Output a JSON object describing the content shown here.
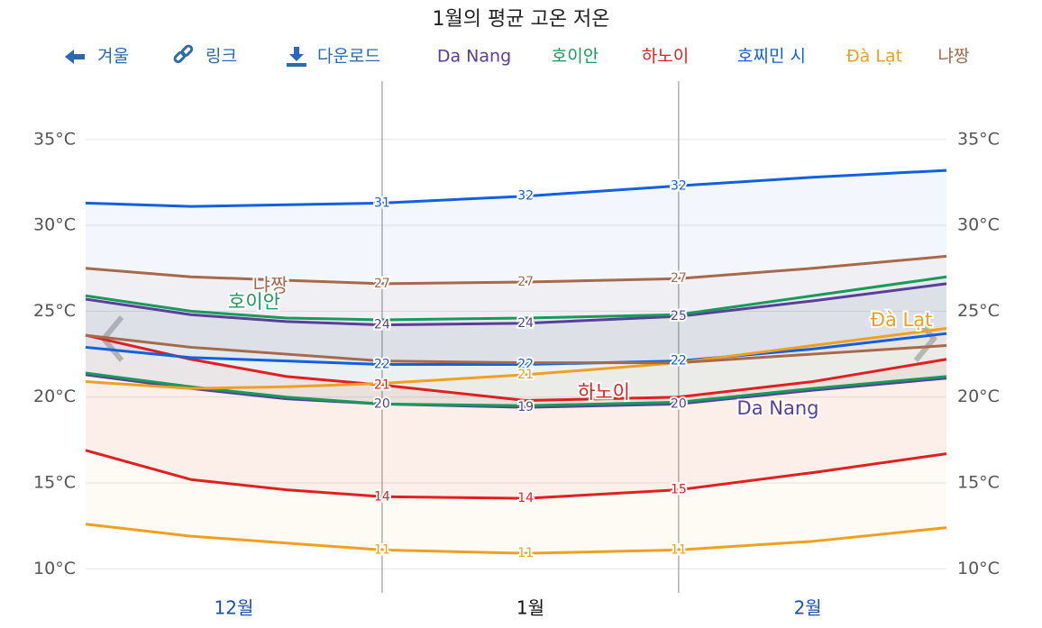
{
  "chart_data": {
    "type": "line",
    "title": "1월의 평균 고온 저온",
    "toolbar": [
      "겨울",
      "링크",
      "다운로드"
    ],
    "x": [
      -31,
      -20,
      -10,
      0,
      15,
      31,
      45,
      59
    ],
    "xlim": [
      -31,
      59
    ],
    "xticks": [
      {
        "value": -15.5,
        "label": "12월"
      },
      {
        "value": 15.5,
        "label": "1월"
      },
      {
        "value": 44.5,
        "label": "2월"
      }
    ],
    "selected_xtick": 1,
    "month_starts": [
      0,
      31
    ],
    "ylim": [
      8.6,
      38.4
    ],
    "yticks": [
      {
        "value": 10,
        "label": "10°C"
      },
      {
        "value": 15,
        "label": "15°C"
      },
      {
        "value": 20,
        "label": "20°C"
      },
      {
        "value": 25,
        "label": "25°C"
      },
      {
        "value": 30,
        "label": "30°C"
      },
      {
        "value": 35,
        "label": "35°C"
      }
    ],
    "grid": true,
    "bands": true,
    "series": [
      {
        "name": "Da Nang",
        "color": "#5a3e9a",
        "high": [
          25.7,
          24.8,
          24.4,
          24.2,
          24.3,
          24.7,
          25.6,
          26.6
        ],
        "high_labels": [
          null,
          null,
          null,
          "24",
          "24",
          "25",
          null,
          null
        ],
        "low": [
          21.3,
          20.5,
          19.9,
          19.6,
          19.4,
          19.6,
          20.4,
          21.1
        ],
        "low_labels": [
          null,
          null,
          null,
          "20",
          "19",
          "20",
          null,
          null
        ]
      },
      {
        "name": "호이안",
        "color": "#1a9a5a",
        "high": [
          25.9,
          25.0,
          24.6,
          24.5,
          24.6,
          24.8,
          25.9,
          27.0
        ],
        "high_labels": [
          null,
          null,
          null,
          null,
          null,
          null,
          null,
          null
        ],
        "low": [
          21.4,
          20.6,
          20.0,
          19.6,
          19.5,
          19.7,
          20.5,
          21.2
        ],
        "low_labels": [
          null,
          null,
          null,
          null,
          null,
          null,
          null,
          null
        ]
      },
      {
        "name": "하노이",
        "color": "#e02020",
        "high": [
          23.6,
          22.2,
          21.2,
          20.7,
          19.8,
          20.0,
          20.9,
          22.2
        ],
        "high_labels": [
          null,
          null,
          null,
          "21",
          null,
          null,
          null,
          null
        ],
        "low": [
          16.9,
          15.2,
          14.6,
          14.2,
          14.1,
          14.6,
          15.6,
          16.7
        ],
        "low_labels": [
          null,
          null,
          null,
          "14",
          "14",
          "15",
          null,
          null
        ]
      },
      {
        "name": "호찌민 시",
        "color": "#1060e0",
        "high": [
          31.3,
          31.1,
          31.2,
          31.3,
          31.7,
          32.3,
          32.8,
          33.2
        ],
        "high_labels": [
          null,
          null,
          null,
          "31",
          "32",
          "32",
          null,
          null
        ],
        "low": [
          22.9,
          22.3,
          22.1,
          21.9,
          21.9,
          22.1,
          22.8,
          23.7
        ],
        "low_labels": [
          null,
          null,
          null,
          "22",
          "22",
          "22",
          null,
          null
        ]
      },
      {
        "name": "Đà Lạt",
        "color": "#f0a020",
        "high": [
          20.9,
          20.5,
          20.6,
          20.8,
          21.3,
          22.0,
          23.0,
          24.0
        ],
        "high_labels": [
          null,
          null,
          null,
          null,
          "21",
          null,
          null,
          null
        ],
        "low": [
          12.6,
          11.9,
          11.5,
          11.1,
          10.9,
          11.1,
          11.6,
          12.4
        ],
        "low_labels": [
          null,
          null,
          null,
          "11",
          "11",
          "11",
          null,
          null
        ]
      },
      {
        "name": "냐짱",
        "color": "#a8684a",
        "high": [
          27.5,
          27.0,
          26.8,
          26.6,
          26.7,
          26.9,
          27.5,
          28.2
        ],
        "high_labels": [
          null,
          null,
          null,
          "27",
          "27",
          "27",
          null,
          null
        ],
        "low": [
          23.6,
          22.9,
          22.5,
          22.1,
          22.0,
          22.0,
          22.5,
          23.0
        ],
        "low_labels": [
          null,
          null,
          null,
          null,
          null,
          null,
          null,
          null
        ]
      }
    ],
    "annotations": [
      "냐짱",
      "호이안",
      "하노이",
      "Da Nang",
      "Đà Lạt"
    ]
  }
}
